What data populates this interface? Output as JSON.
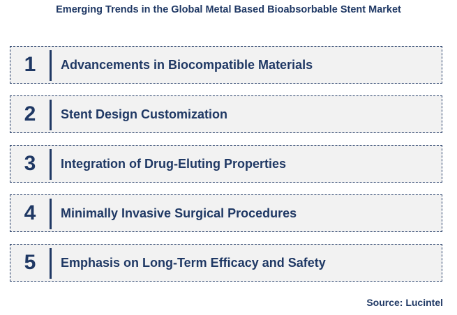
{
  "title": "Emerging Trends in the Global Metal Based Bioabsorbable Stent Market",
  "items": [
    {
      "number": "1",
      "label": "Advancements in Biocompatible Materials"
    },
    {
      "number": "2",
      "label": "Stent Design Customization"
    },
    {
      "number": "3",
      "label": "Integration of Drug-Eluting Properties"
    },
    {
      "number": "4",
      "label": "Minimally Invasive Surgical Procedures"
    },
    {
      "number": "5",
      "label": "Emphasis on Long-Term Efficacy and Safety"
    }
  ],
  "source": "Source: Lucintel",
  "colors": {
    "primary": "#1f3864",
    "box_fill": "#f2f2f2"
  }
}
